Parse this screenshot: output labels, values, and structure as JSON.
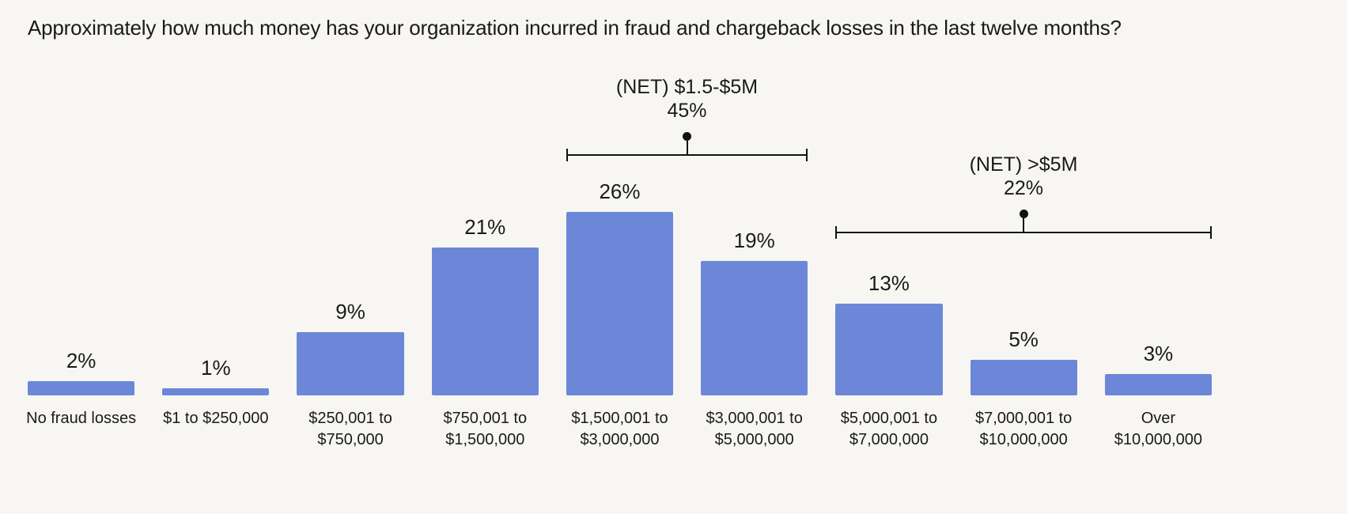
{
  "colors": {
    "background": "#f7f6f2",
    "bar": "#6d87d8",
    "text": "#1a1a1a",
    "annotation": "#111111"
  },
  "chart_data": {
    "type": "bar",
    "title": "Approximately how much money has your organization incurred in fraud and chargeback losses in the last twelve months?",
    "unit": "%",
    "xlabel": "",
    "ylabel": "",
    "ylim": [
      0,
      30
    ],
    "grid": false,
    "legend": false,
    "bar_color": "#6d87d8",
    "categories": [
      "No fraud losses",
      "$1 to $250,000",
      "$250,001 to $750,000",
      "$750,001 to $1,500,000",
      "$1,500,001 to $3,000,000",
      "$3,000,001 to $5,000,000",
      "$5,000,001 to $7,000,000",
      "$7,000,001 to $10,000,000",
      "Over $10,000,000"
    ],
    "categories_display": [
      "No fraud losses",
      "$1 to $250,000",
      "$250,001 to\n$750,000",
      "$750,001 to\n$1,500,000",
      "$1,500,001 to\n$3,000,000",
      "$3,000,001 to\n$5,000,000",
      "$5,000,001 to\n$7,000,000",
      "$7,000,001 to\n$10,000,000",
      "Over\n$10,000,000"
    ],
    "values": [
      2,
      1,
      9,
      21,
      26,
      19,
      13,
      5,
      3
    ],
    "value_labels": [
      "2%",
      "1%",
      "9%",
      "21%",
      "26%",
      "19%",
      "13%",
      "5%",
      "3%"
    ],
    "annotations": [
      {
        "label": "(NET) $1.5-$5M",
        "value": 45,
        "value_label": "45%",
        "from_index": 4,
        "to_index": 5,
        "span_categories": [
          "$1,500,001 to $3,000,000",
          "$3,000,001 to $5,000,000"
        ]
      },
      {
        "label": "(NET) >$5M",
        "value": 22,
        "value_label": "22%",
        "from_index": 6,
        "to_index": 8,
        "span_categories": [
          "$5,000,001 to $7,000,000",
          "$7,000,001 to $10,000,000",
          "Over $10,000,000"
        ]
      }
    ]
  }
}
